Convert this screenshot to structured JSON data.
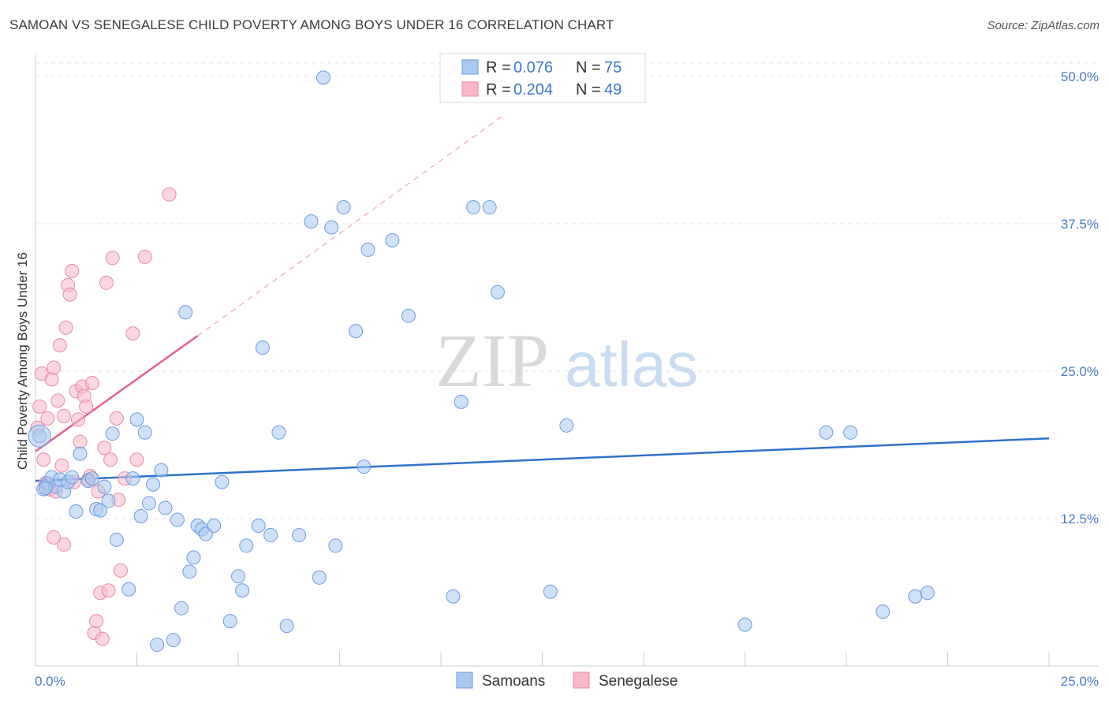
{
  "title": "SAMOAN VS SENEGALESE CHILD POVERTY AMONG BOYS UNDER 16 CORRELATION CHART",
  "source": "Source: ZipAtlas.com",
  "watermark": {
    "zip": "ZIP",
    "atlas": "atlas"
  },
  "legend": {
    "rows": [
      {
        "r_label": "R =",
        "r_value": "0.076",
        "n_label": "N =",
        "n_value": "75"
      },
      {
        "r_label": "R =",
        "r_value": "0.204",
        "n_label": "N =",
        "n_value": "49"
      }
    ]
  },
  "colors": {
    "samoan_fill": "#aac8f0",
    "samoan_stroke": "#6b9be0",
    "samoan_line": "#2f72c9",
    "senegalese_fill": "#f7b8c9",
    "senegalese_stroke": "#e88aa6",
    "senegalese_line": "#e0628c",
    "tick_text": "#4a7cc6",
    "grid": "#e3e3e3"
  },
  "chart_data": {
    "type": "scatter",
    "title": "SAMOAN VS SENEGALESE CHILD POVERTY AMONG BOYS UNDER 16 CORRELATION CHART",
    "xlabel": "",
    "ylabel": "Child Poverty Among Boys Under 16",
    "xlim": [
      0,
      25
    ],
    "ylim": [
      0,
      50
    ],
    "x_tick_labels": [
      "0.0%",
      "25.0%"
    ],
    "y_ticks": [
      12.5,
      25.0,
      37.5,
      50.0
    ],
    "y_tick_labels": [
      "12.5%",
      "25.0%",
      "37.5%",
      "50.0%"
    ],
    "grid": true,
    "legend_position": "top-center",
    "series": [
      {
        "name": "Samoans",
        "r": 0.076,
        "n": 75,
        "trend": {
          "x": [
            0,
            25
          ],
          "y": [
            15.7,
            19.3
          ]
        },
        "points": [
          [
            0.1,
            19.5
          ],
          [
            0.2,
            15.0
          ],
          [
            0.3,
            15.5
          ],
          [
            0.4,
            16.0
          ],
          [
            0.5,
            15.2
          ],
          [
            0.6,
            15.8
          ],
          [
            0.7,
            14.8
          ],
          [
            0.8,
            15.6
          ],
          [
            0.9,
            16.0
          ],
          [
            1.0,
            13.1
          ],
          [
            1.1,
            18.0
          ],
          [
            1.3,
            15.7
          ],
          [
            1.4,
            15.9
          ],
          [
            1.5,
            13.3
          ],
          [
            1.6,
            13.2
          ],
          [
            1.7,
            15.2
          ],
          [
            1.8,
            14.0
          ],
          [
            1.9,
            19.7
          ],
          [
            2.0,
            10.7
          ],
          [
            2.3,
            6.5
          ],
          [
            2.4,
            15.9
          ],
          [
            2.5,
            20.9
          ],
          [
            2.6,
            12.7
          ],
          [
            2.7,
            19.8
          ],
          [
            2.8,
            13.8
          ],
          [
            2.9,
            15.4
          ],
          [
            3.0,
            1.8
          ],
          [
            3.1,
            16.6
          ],
          [
            3.2,
            13.4
          ],
          [
            3.4,
            2.2
          ],
          [
            3.5,
            12.4
          ],
          [
            3.6,
            4.9
          ],
          [
            3.7,
            30.0
          ],
          [
            3.8,
            8.0
          ],
          [
            3.9,
            9.2
          ],
          [
            4.0,
            11.9
          ],
          [
            4.1,
            11.6
          ],
          [
            4.2,
            11.2
          ],
          [
            4.4,
            11.9
          ],
          [
            4.6,
            15.6
          ],
          [
            4.8,
            3.8
          ],
          [
            5.0,
            7.6
          ],
          [
            5.1,
            6.4
          ],
          [
            5.2,
            10.2
          ],
          [
            5.5,
            11.9
          ],
          [
            5.6,
            27.0
          ],
          [
            5.8,
            11.1
          ],
          [
            6.0,
            19.8
          ],
          [
            6.2,
            3.4
          ],
          [
            6.5,
            11.1
          ],
          [
            6.8,
            37.7
          ],
          [
            7.0,
            7.5
          ],
          [
            7.3,
            37.2
          ],
          [
            7.4,
            10.2
          ],
          [
            7.6,
            38.9
          ],
          [
            7.9,
            28.4
          ],
          [
            8.1,
            16.9
          ],
          [
            8.2,
            35.3
          ],
          [
            8.8,
            36.1
          ],
          [
            9.2,
            29.7
          ],
          [
            7.1,
            49.9
          ],
          [
            10.3,
            5.9
          ],
          [
            10.5,
            22.4
          ],
          [
            10.8,
            38.9
          ],
          [
            11.2,
            38.9
          ],
          [
            11.4,
            31.7
          ],
          [
            12.7,
            6.3
          ],
          [
            13.1,
            20.4
          ],
          [
            17.5,
            3.5
          ],
          [
            19.5,
            19.8
          ],
          [
            20.1,
            19.8
          ],
          [
            20.9,
            4.6
          ],
          [
            21.7,
            5.9
          ],
          [
            22.0,
            6.2
          ],
          [
            0.25,
            15.1
          ]
        ]
      },
      {
        "name": "Senegalese",
        "r": 0.204,
        "n": 49,
        "trend": {
          "x": [
            0,
            4.0
          ],
          "y": [
            18.2,
            28.0
          ]
        },
        "trend_ext": {
          "x": [
            4.0,
            11.5
          ],
          "y": [
            28.0,
            46.6
          ]
        },
        "points": [
          [
            0.05,
            20.2
          ],
          [
            0.1,
            22.0
          ],
          [
            0.15,
            24.8
          ],
          [
            0.2,
            17.5
          ],
          [
            0.25,
            15.5
          ],
          [
            0.3,
            21.0
          ],
          [
            0.35,
            15.0
          ],
          [
            0.4,
            24.3
          ],
          [
            0.45,
            25.3
          ],
          [
            0.5,
            14.8
          ],
          [
            0.55,
            22.5
          ],
          [
            0.6,
            27.2
          ],
          [
            0.65,
            17.0
          ],
          [
            0.7,
            21.2
          ],
          [
            0.7,
            10.3
          ],
          [
            0.75,
            28.7
          ],
          [
            0.8,
            32.3
          ],
          [
            0.85,
            31.5
          ],
          [
            0.9,
            33.5
          ],
          [
            0.95,
            15.6
          ],
          [
            1.0,
            23.3
          ],
          [
            1.05,
            20.9
          ],
          [
            1.1,
            19.0
          ],
          [
            1.15,
            23.7
          ],
          [
            1.2,
            22.9
          ],
          [
            1.25,
            22.0
          ],
          [
            1.3,
            15.8
          ],
          [
            1.35,
            16.1
          ],
          [
            1.4,
            24.0
          ],
          [
            1.45,
            2.8
          ],
          [
            1.5,
            3.8
          ],
          [
            1.55,
            14.8
          ],
          [
            1.6,
            6.2
          ],
          [
            1.65,
            2.3
          ],
          [
            1.7,
            18.5
          ],
          [
            1.75,
            32.5
          ],
          [
            1.8,
            6.4
          ],
          [
            1.85,
            17.5
          ],
          [
            1.9,
            34.6
          ],
          [
            2.0,
            21.0
          ],
          [
            2.05,
            14.1
          ],
          [
            2.1,
            8.1
          ],
          [
            2.2,
            15.9
          ],
          [
            2.4,
            28.2
          ],
          [
            2.5,
            17.5
          ],
          [
            2.7,
            34.7
          ],
          [
            3.3,
            40.0
          ],
          [
            0.45,
            10.9
          ],
          [
            0.3,
            15.3
          ]
        ]
      }
    ]
  },
  "bottom_legend": {
    "items": [
      "Samoans",
      "Senegalese"
    ]
  }
}
